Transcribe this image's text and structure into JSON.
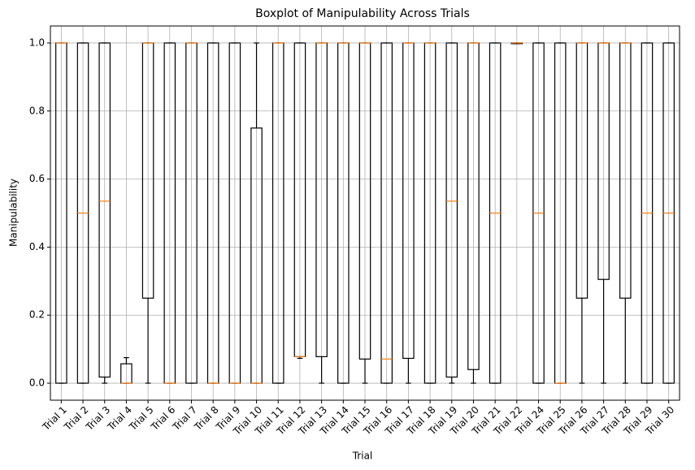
{
  "chart_data": {
    "type": "box",
    "title": "Boxplot of Manipulability Across Trials",
    "x_label": "Trial",
    "y_label": "Manipulability",
    "categories": [
      "Trial 1",
      "Trial 2",
      "Trial 3",
      "Trial 4",
      "Trial 5",
      "Trial 6",
      "Trial 7",
      "Trial 8",
      "Trial 9",
      "Trial 10",
      "Trial 11",
      "Trial 12",
      "Trial 13",
      "Trial 14",
      "Trial 15",
      "Trial 16",
      "Trial 17",
      "Trial 18",
      "Trial 19",
      "Trial 20",
      "Trial 21",
      "Trial 22",
      "Trial 24",
      "Trial 25",
      "Trial 26",
      "Trial 27",
      "Trial 28",
      "Trial 29",
      "Trial 30"
    ],
    "min": [
      0,
      0,
      0,
      0,
      0,
      0,
      0,
      0,
      0,
      0,
      0,
      0.073,
      0,
      0,
      0,
      0,
      0,
      0,
      0,
      0,
      0,
      0.998,
      0,
      0,
      0,
      0,
      0,
      0,
      0
    ],
    "q1": [
      0,
      0,
      0.018,
      0,
      0.25,
      0,
      0,
      0,
      0,
      0,
      0,
      0.078,
      0.078,
      0,
      0.071,
      0,
      0.073,
      0,
      0.018,
      0.04,
      0,
      0.998,
      0,
      0,
      0.25,
      0.305,
      0.25,
      0,
      0
    ],
    "median": [
      1,
      0.5,
      0.535,
      0,
      1,
      0,
      1,
      0,
      0,
      0,
      1,
      0.078,
      1,
      1,
      1,
      0.071,
      1,
      1,
      0.535,
      1,
      0.5,
      1,
      0.5,
      0,
      1,
      1,
      1,
      0.5,
      0.5
    ],
    "q3": [
      1,
      1,
      1,
      0.057,
      1,
      1,
      1,
      1,
      1,
      0.75,
      1,
      1,
      1,
      1,
      1,
      1,
      1,
      1,
      1,
      1,
      1,
      1,
      1,
      1,
      1,
      1,
      1,
      1,
      1
    ],
    "max": [
      1,
      1,
      1,
      0.075,
      1,
      1,
      1,
      1,
      1,
      1,
      1,
      1,
      1,
      1,
      1,
      1,
      1,
      1,
      1,
      1,
      1,
      1,
      1,
      1,
      1,
      1,
      1,
      1,
      1
    ],
    "box_color": "#000000",
    "median_color": "#ff7f0e",
    "ylim": [
      -0.05,
      1.05
    ],
    "yticks": [
      {
        "value": 0,
        "label": "0.0"
      },
      0.2,
      0.4,
      0.6,
      0.8,
      {
        "value": 1,
        "label": "1.0"
      }
    ],
    "grid": true
  }
}
